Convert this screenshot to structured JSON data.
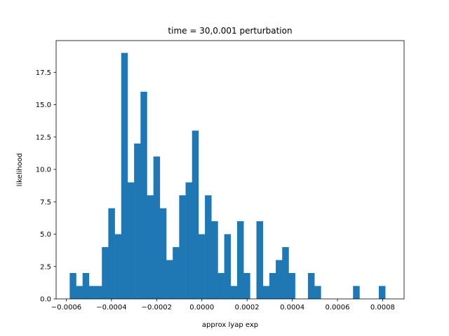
{
  "chart_data": {
    "type": "bar",
    "title": "time = 30,0.001 perturbation",
    "xlabel": "approx lyap exp",
    "ylabel": "likelihood",
    "bar_color": "#1f77b4",
    "xlim": [
      -0.000645,
      0.000895
    ],
    "ylim": [
      0,
      19.95
    ],
    "x_ticks": [
      -0.0006,
      -0.0004,
      -0.0002,
      0.0,
      0.0002,
      0.0004,
      0.0006,
      0.0008
    ],
    "x_tick_labels": [
      "−0.0006",
      "−0.0004",
      "−0.0002",
      "0.0000",
      "0.0002",
      "0.0004",
      "0.0006",
      "0.0008"
    ],
    "y_ticks": [
      0,
      2.5,
      5,
      7.5,
      10,
      12.5,
      15,
      17.5
    ],
    "y_tick_labels": [
      "0.0",
      "2.5",
      "5.0",
      "7.5",
      "10.0",
      "12.5",
      "15.0",
      "17.5"
    ],
    "grid": false,
    "bin_start": -0.000585,
    "bin_width": 2.85e-05,
    "values": [
      2,
      1,
      2,
      1,
      1,
      4,
      7,
      5,
      19,
      9,
      12,
      16,
      8,
      11,
      7,
      3,
      4,
      8,
      9,
      13,
      5,
      8,
      6,
      2,
      5,
      1,
      6,
      2,
      0,
      6,
      1,
      2,
      3,
      4,
      2,
      0,
      0,
      2,
      1,
      0,
      0,
      0,
      0,
      0,
      1,
      0,
      0,
      0,
      1
    ]
  }
}
